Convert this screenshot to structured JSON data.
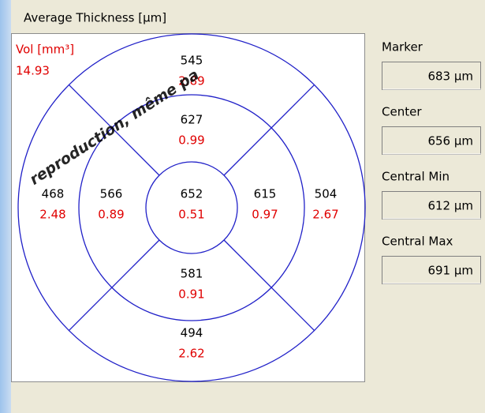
{
  "panel": {
    "title": "Average Thickness [µm]",
    "watermark": "reproduction, même pa",
    "volume": {
      "label": "Vol [mm³]",
      "value": "14.93"
    },
    "sectors": [
      {
        "name": "superior-outer",
        "thickness": 545,
        "volume": "2.89"
      },
      {
        "name": "superior-inner",
        "thickness": 627,
        "volume": "0.99"
      },
      {
        "name": "temporal-outer",
        "thickness": 468,
        "volume": "2.48"
      },
      {
        "name": "temporal-inner",
        "thickness": 566,
        "volume": "0.89"
      },
      {
        "name": "center",
        "thickness": 652,
        "volume": "0.51"
      },
      {
        "name": "nasal-inner",
        "thickness": 615,
        "volume": "0.97"
      },
      {
        "name": "nasal-outer",
        "thickness": 504,
        "volume": "2.67"
      },
      {
        "name": "inferior-inner",
        "thickness": 581,
        "volume": "0.91"
      },
      {
        "name": "inferior-outer",
        "thickness": 494,
        "volume": "2.62"
      }
    ],
    "stats": [
      {
        "label": "Marker",
        "value": "683 µm"
      },
      {
        "label": "Center",
        "value": "656 µm"
      },
      {
        "label": "Central Min",
        "value": "612 µm"
      },
      {
        "label": "Central Max",
        "value": "691 µm"
      }
    ]
  }
}
